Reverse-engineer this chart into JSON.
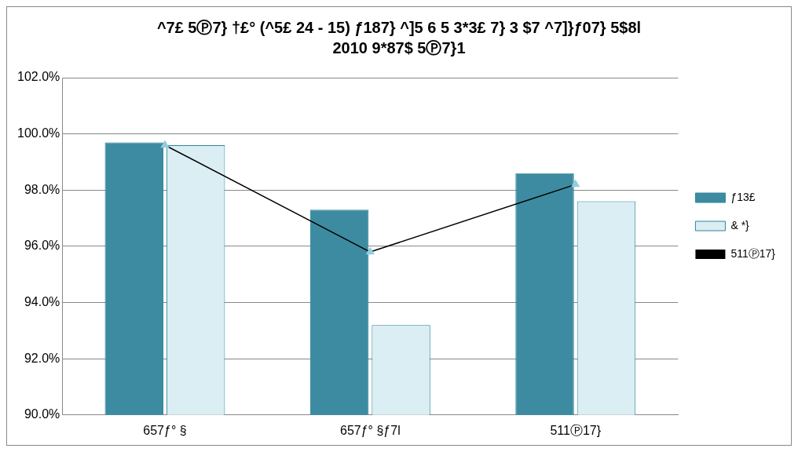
{
  "chart_data": {
    "type": "bar",
    "title": "^7£ 5Ⓟ7} †£° (^5£ 24 - 15) ƒ187} ^]5 6 5 3*3£ 7} 3 $7 ^7]}ƒ07} 5$8l",
    "subtitle": "2010 9*87$ 5Ⓟ7}1",
    "categories": [
      "657ƒ° §",
      "657ƒ° §ƒ7l",
      "511Ⓟ17}"
    ],
    "series": [
      {
        "name": "ƒ13£",
        "color": "#3d8ba1",
        "values": [
          99.7,
          97.3,
          98.6
        ]
      },
      {
        "name": "& *}",
        "color": "#dbeef3",
        "values": [
          99.6,
          93.2,
          97.6
        ]
      },
      {
        "name": "511Ⓟ17}",
        "type": "line",
        "color": "#000000",
        "values": [
          99.6,
          95.8,
          98.2
        ],
        "marker": "triangle"
      }
    ],
    "ylim": [
      90,
      102
    ],
    "yticks": [
      {
        "value": 90,
        "label": "90.0%"
      },
      {
        "value": 92,
        "label": "92.0%"
      },
      {
        "value": 94,
        "label": "94.0%"
      },
      {
        "value": 96,
        "label": "96.0%"
      },
      {
        "value": 98,
        "label": "98.0%"
      },
      {
        "value": 100,
        "label": "100.0%"
      },
      {
        "value": 102,
        "label": "102.0%"
      }
    ],
    "grid": "y",
    "legend": "right"
  }
}
